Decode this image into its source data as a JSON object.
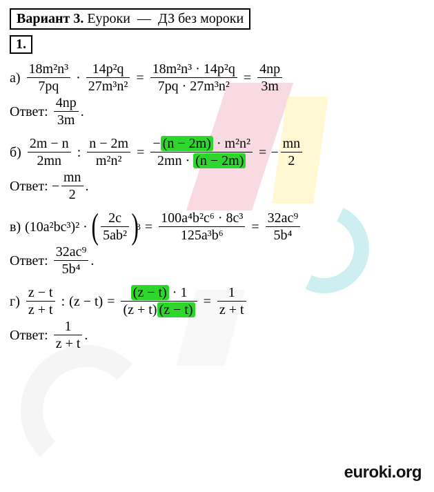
{
  "header": {
    "variant_label": "Вариант 3.",
    "site": "Еуроки",
    "tagline": "ДЗ без мороки"
  },
  "task_number": "1.",
  "problems": {
    "a": {
      "label": "а)",
      "f1_num": "18m²n³",
      "f1_den": "7pq",
      "f2_num": "14p²q",
      "f2_den": "27m³n²",
      "step_num": "18m²n³ · 14p²q",
      "step_den": "7pq · 27m³n²",
      "res_num": "4np",
      "res_den": "3m",
      "answer_label": "Ответ:",
      "ans_num": "4np",
      "ans_den": "3m"
    },
    "b": {
      "label": "б)",
      "f1_num": "2m − n",
      "f1_den": "2mn",
      "f2_num": "n − 2m",
      "f2_den": "m²n²",
      "step_pre": "−",
      "step_hl1": "(n − 2m)",
      "step_mid": " · m²n²",
      "step_den_pre": "2mn · ",
      "step_hl2": "(n − 2m)",
      "res_pre": "−",
      "res_num": "mn",
      "res_den": "2",
      "answer_label": "Ответ:",
      "ans_pre": "−",
      "ans_num": "mn",
      "ans_den": "2"
    },
    "c": {
      "label": "в)",
      "term1": "(10a²bc³)²",
      "f2_num": "2c",
      "f2_den": "5ab²",
      "power": "3",
      "step_num": "100a⁴b²c⁶ · 8c³",
      "step_den": "125a³b⁶",
      "res_num": "32ac⁹",
      "res_den": "5b⁴",
      "answer_label": "Ответ:",
      "ans_num": "32ac⁹",
      "ans_den": "5b⁴"
    },
    "d": {
      "label": "г)",
      "f1_num": "z − t",
      "f1_den": "z + t",
      "div": "(z − t)",
      "step_hl1": "(z − t)",
      "step_num_tail": " · 1",
      "step_den_pre": "(z + t)",
      "step_hl2": "(z − t)",
      "res_num": "1",
      "res_den": "z + t",
      "answer_label": "Ответ:",
      "ans_num": "1",
      "ans_den": "z + t"
    }
  },
  "footer": "euroki.org",
  "style": {
    "highlight_color": "#2dd52d",
    "font_family": "Palatino-like serif",
    "base_font_size_pt": 15
  }
}
